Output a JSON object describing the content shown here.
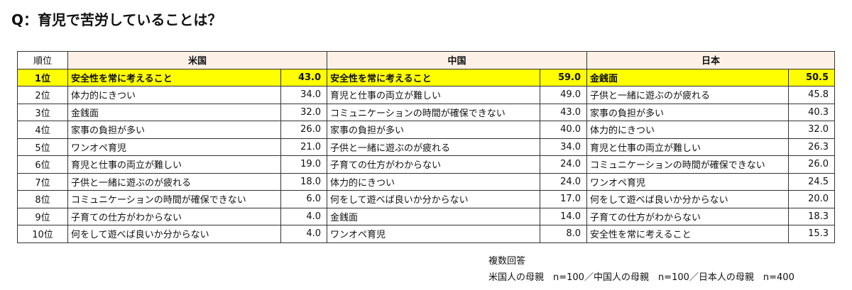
{
  "title": "Q：育児で苦労していることは？",
  "table": {
    "headers": [
      "順位",
      "米国",
      "中国",
      "日本"
    ],
    "rows": [
      {
        "rank": "1位",
        "us": [
          "安全性を常に考えること",
          "43.0"
        ],
        "cn": [
          "安全性を常に考えること",
          "59.0"
        ],
        "jp": [
          "金銭面",
          "50.5"
        ]
      },
      {
        "rank": "2位",
        "us": [
          "体力的にきつい",
          "34.0"
        ],
        "cn": [
          "育児と仕事の両立が難しい",
          "49.0"
        ],
        "jp": [
          "子供と一緒に遊ぶのが疲れる",
          "45.8"
        ]
      },
      {
        "rank": "3位",
        "us": [
          "金銭面",
          "32.0"
        ],
        "cn": [
          "コミュニケーションの時間が確保できない",
          "43.0"
        ],
        "jp": [
          "家事の負担が多い",
          "40.3"
        ]
      },
      {
        "rank": "4位",
        "us": [
          "家事の負担が多い",
          "26.0"
        ],
        "cn": [
          "家事の負担が多い",
          "40.0"
        ],
        "jp": [
          "体力的にきつい",
          "32.0"
        ]
      },
      {
        "rank": "5位",
        "us": [
          "ワンオペ育児",
          "21.0"
        ],
        "cn": [
          "子供と一緒に遊ぶのが疲れる",
          "34.0"
        ],
        "jp": [
          "育児と仕事の両立が難しい",
          "26.3"
        ]
      },
      {
        "rank": "6位",
        "us": [
          "育児と仕事の両立が難しい",
          "19.0"
        ],
        "cn": [
          "子育ての仕方がわからない",
          "24.0"
        ],
        "jp": [
          "コミュニケーションの時間が確保できない",
          "26.0"
        ]
      },
      {
        "rank": "7位",
        "us": [
          "子供と一緒に遊ぶのが疲れる",
          "18.0"
        ],
        "cn": [
          "体力的にきつい",
          "24.0"
        ],
        "jp": [
          "ワンオペ育児",
          "24.5"
        ]
      },
      {
        "rank": "8位",
        "us": [
          "コミュニケーションの時間が確保できない",
          "6.0"
        ],
        "cn": [
          "何をして遊べば良いか分からない",
          "17.0"
        ],
        "jp": [
          "何をして遊べば良いか分からない",
          "20.0"
        ]
      },
      {
        "rank": "9位",
        "us": [
          "子育ての仕方がわからない",
          "4.0"
        ],
        "cn": [
          "金銭面",
          "14.0"
        ],
        "jp": [
          "子育ての仕方がわからない",
          "18.3"
        ]
      },
      {
        "rank": "10位",
        "us": [
          "何をして遊べば良いか分からない",
          "4.0"
        ],
        "cn": [
          "ワンオペ育児",
          "8.0"
        ],
        "jp": [
          "安全性を常に考えること",
          "15.3"
        ]
      }
    ]
  },
  "notes": [
    "複数回答",
    "米国人の母親　n=100／中国人の母親　n=100／日本人の母親　n=400"
  ],
  "colors": {
    "highlight": "#ffff00",
    "header": "#fdf1e7"
  }
}
